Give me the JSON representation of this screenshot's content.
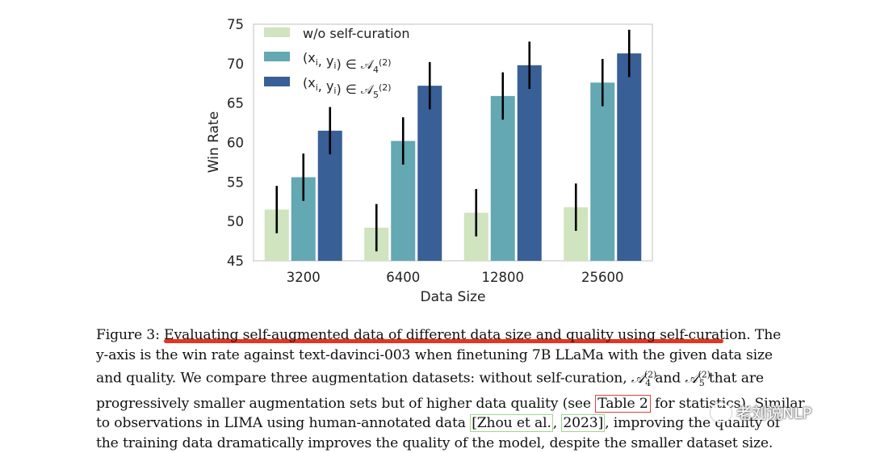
{
  "chart_data": {
    "type": "bar",
    "categories": [
      "3200",
      "6400",
      "12800",
      "25600"
    ],
    "xlabel": "Data Size",
    "ylabel": "Win Rate",
    "ylim": [
      45,
      75
    ],
    "yticks": [
      "45",
      "50",
      "55",
      "60",
      "65",
      "70",
      "75"
    ],
    "legend_position": "top-left",
    "grid": false,
    "series": [
      {
        "name": "w/o self-curation",
        "color": "#cfe4bf",
        "values": [
          51.5,
          49.2,
          51.1,
          51.8
        ],
        "err": [
          3.0,
          3.0,
          3.0,
          3.0
        ]
      },
      {
        "name": "(x_i, y_i) ∈ A_4^(2)",
        "color": "#63a8b2",
        "values": [
          55.6,
          60.2,
          65.9,
          67.6
        ],
        "err": [
          3.0,
          3.0,
          3.0,
          3.0
        ]
      },
      {
        "name": "(x_i, y_i) ∈ A_5^(2)",
        "color": "#385f96",
        "values": [
          61.5,
          67.2,
          69.8,
          71.3
        ],
        "err": [
          3.0,
          3.0,
          3.0,
          3.0
        ]
      }
    ]
  },
  "caption": {
    "fig_label": "Figure 3: ",
    "title": "Evaluating self-augmented data of different data size and quality using self-curation",
    "title_end": ". The",
    "line2": "y-axis is the win rate against text-davinci-003 when finetuning 7B LLaMa with the given data size",
    "line3a": "and quality. We compare three augmentation datasets: without self-curation, ",
    "a4": "𝒜",
    "a4_sup": "(2)",
    "a4_sub": "4",
    "line3b": " and ",
    "a5": "𝒜",
    "a5_sup": "(2)",
    "a5_sub": "5",
    "line3c": " that are",
    "line4a": "progressively smaller augmentation sets but of higher data quality (see ",
    "table_ref": "Table 2",
    "line4b": " for statistics). Similar",
    "line5a": "to observations in LIMA using human-annotated data ",
    "cite_a": "[Zhou et al.",
    "cite_b": ", ",
    "cite_c": "2023]",
    "line5b": ", improving the quality of",
    "line6": "the training data dramatically improves the quality of the model, despite the smaller dataset size."
  },
  "watermark": {
    "text": "老刘说NLP"
  }
}
